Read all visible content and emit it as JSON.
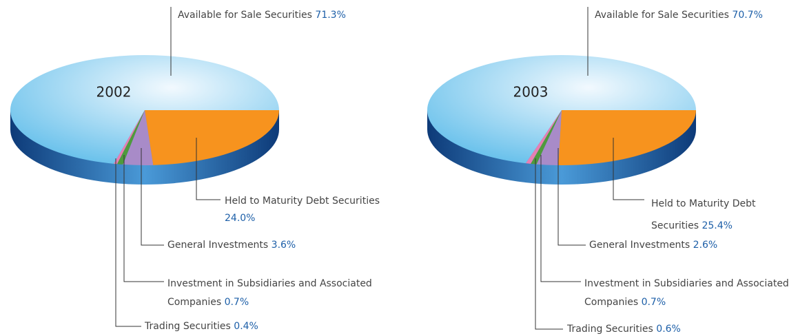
{
  "chart_data": [
    {
      "type": "pie",
      "title": "2002",
      "categories": [
        "Available for Sale Securities",
        "Held to Maturity Debt Securities",
        "General Investments",
        "Investment in Subsidiaries and Associated Companies",
        "Trading Securities"
      ],
      "values": [
        71.3,
        24.0,
        3.6,
        0.7,
        0.4
      ],
      "value_labels": [
        "71.3%",
        "24.0%",
        "3.6%",
        "0.7%",
        "0.4%"
      ],
      "colors": [
        "#bfe4f8",
        "#f7931e",
        "#a88bc8",
        "#4f9a3c",
        "#e77fb3"
      ]
    },
    {
      "type": "pie",
      "title": "2003",
      "categories": [
        "Available for Sale Securities",
        "Held to Maturity Debt Securities",
        "General Investments",
        "Investment in Subsidiaries and Associated Companies",
        "Trading Securities"
      ],
      "values": [
        70.7,
        25.4,
        2.6,
        0.7,
        0.6
      ],
      "value_labels": [
        "70.7%",
        "25.4%",
        "2.6%",
        "0.7%",
        "0.6%"
      ],
      "colors": [
        "#bfe4f8",
        "#f7931e",
        "#a88bc8",
        "#4f9a3c",
        "#e77fb3"
      ]
    }
  ]
}
